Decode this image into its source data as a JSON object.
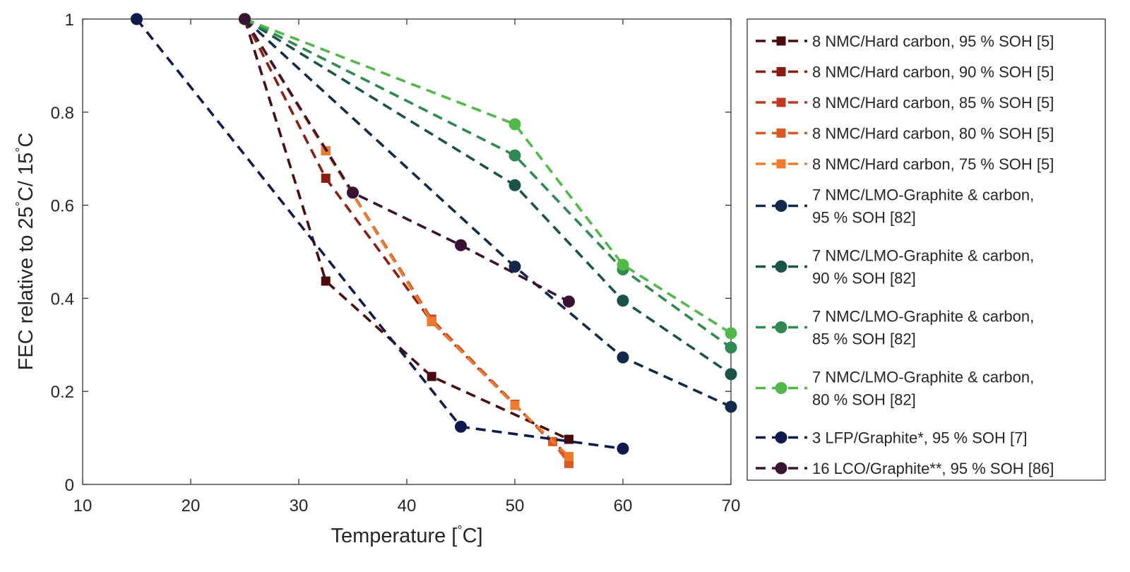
{
  "chart_data": {
    "type": "line",
    "xlabel_main": "Temperature [",
    "xlabel_sup": "°",
    "xlabel_tail": "C]",
    "ylabel_main": "FEC relative to 25",
    "ylabel_sup": "°",
    "ylabel_mid": "C/ 15",
    "ylabel_sup2": "°",
    "ylabel_tail": "C",
    "xlim": [
      10,
      70
    ],
    "ylim": [
      0,
      1
    ],
    "xticks": [
      "10",
      "20",
      "30",
      "40",
      "50",
      "60",
      "70"
    ],
    "yticks": [
      "0",
      "0.2",
      "0.4",
      "0.6",
      "0.8",
      "1"
    ],
    "legend_position": "right",
    "series": [
      {
        "name": "8 NMC/Hard carbon, 95 % SOH [5]",
        "lines": [
          "8 NMC/Hard carbon, 95 % SOH [5]"
        ],
        "color": "#4a0c0c",
        "marker": "square",
        "x": [
          25,
          32.5,
          42.3,
          55
        ],
        "y": [
          1,
          0.437,
          0.232,
          0.097
        ]
      },
      {
        "name": "8 NMC/Hard carbon, 90 % SOH [5]",
        "lines": [
          "8 NMC/Hard carbon, 90 % SOH [5]"
        ],
        "color": "#8a1c12",
        "marker": "square",
        "x": [
          25,
          32.5,
          42.3,
          50,
          55
        ],
        "y": [
          1,
          0.658,
          0.35,
          0.17,
          0.06
        ]
      },
      {
        "name": "8 NMC/Hard carbon, 85 % SOH [5]",
        "lines": [
          "8 NMC/Hard carbon, 85 % SOH [5]"
        ],
        "color": "#c0391e",
        "marker": "square",
        "x": [
          25,
          32.5,
          42.3,
          50,
          55
        ],
        "y": [
          1,
          0.717,
          0.355,
          0.172,
          0.052
        ]
      },
      {
        "name": "8 NMC/Hard carbon, 80 % SOH [5]",
        "lines": [
          "8 NMC/Hard carbon, 80 % SOH [5]"
        ],
        "color": "#dc5a22",
        "marker": "square",
        "x": [
          25,
          32.5,
          42.3,
          50,
          53.5,
          55
        ],
        "y": [
          1,
          0.717,
          0.352,
          0.17,
          0.092,
          0.045
        ]
      },
      {
        "name": "8 NMC/Hard carbon, 75 % SOH [5]",
        "lines": [
          "8 NMC/Hard carbon, 75 % SOH [5]"
        ],
        "color": "#ee7a2e",
        "marker": "square",
        "x": [
          25,
          32.5,
          42.3,
          50,
          55
        ],
        "y": [
          1,
          0.717,
          0.35,
          0.17,
          0.06
        ]
      },
      {
        "name": "7 NMC/LMO-Graphite & carbon, 95 % SOH [82]",
        "lines": [
          "7 NMC/LMO-Graphite & carbon,",
          "95 % SOH [82]"
        ],
        "color": "#122a4a",
        "marker": "circle",
        "x": [
          25,
          50,
          60,
          70
        ],
        "y": [
          1,
          0.468,
          0.273,
          0.167
        ]
      },
      {
        "name": "7 NMC/LMO-Graphite & carbon, 90 % SOH [82]",
        "lines": [
          "7 NMC/LMO-Graphite & carbon,",
          "90 % SOH [82]"
        ],
        "color": "#1a5448",
        "marker": "circle",
        "x": [
          25,
          50,
          60,
          70
        ],
        "y": [
          1,
          0.643,
          0.395,
          0.237
        ]
      },
      {
        "name": "7 NMC/LMO-Graphite & carbon, 85 % SOH [82]",
        "lines": [
          "7 NMC/LMO-Graphite & carbon,",
          "85 % SOH [82]"
        ],
        "color": "#2e8a4e",
        "marker": "circle",
        "x": [
          25,
          50,
          60,
          70
        ],
        "y": [
          1,
          0.707,
          0.462,
          0.294
        ]
      },
      {
        "name": "7 NMC/LMO-Graphite & carbon, 80 % SOH [82]",
        "lines": [
          "7 NMC/LMO-Graphite & carbon,",
          "80 % SOH [82]"
        ],
        "color": "#52b84a",
        "marker": "circle",
        "x": [
          25,
          50,
          60,
          70
        ],
        "y": [
          1,
          0.774,
          0.472,
          0.325
        ]
      },
      {
        "name": "3 LFP/Graphite*, 95 % SOH [7]",
        "lines": [
          "3 LFP/Graphite*, 95 % SOH [7]"
        ],
        "color": "#0e1a4e",
        "marker": "circle",
        "x": [
          15,
          45,
          60
        ],
        "y": [
          1,
          0.124,
          0.077
        ]
      },
      {
        "name": "16 LCO/Graphite**, 95 % SOH [86]",
        "lines": [
          "16 LCO/Graphite**, 95 % SOH [86]"
        ],
        "color": "#3a1232",
        "marker": "circle",
        "x": [
          25,
          35,
          45,
          55
        ],
        "y": [
          1,
          0.627,
          0.514,
          0.393
        ]
      }
    ]
  }
}
